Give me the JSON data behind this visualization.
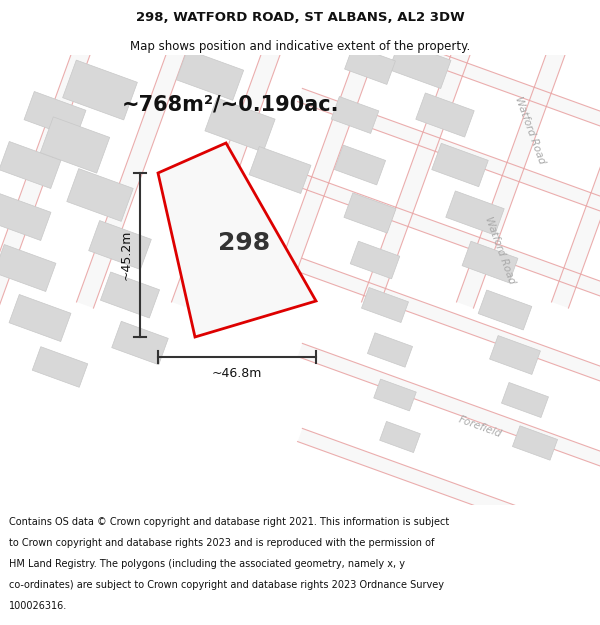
{
  "title_line1": "298, WATFORD ROAD, ST ALBANS, AL2 3DW",
  "title_line2": "Map shows position and indicative extent of the property.",
  "area_text": "~768m²/~0.190ac.",
  "label_number": "298",
  "dim_vertical": "~45.2m",
  "dim_horizontal": "~46.8m",
  "footer_lines": [
    "Contains OS data © Crown copyright and database right 2021. This information is subject",
    "to Crown copyright and database rights 2023 and is reproduced with the permission of",
    "HM Land Registry. The polygons (including the associated geometry, namely x, y",
    "co-ordinates) are subject to Crown copyright and database rights 2023 Ordnance Survey",
    "100026316."
  ],
  "bg_color": "#f0f0f0",
  "map_bg_color": "#f0f0f0",
  "road_line_color": "#e8a0a0",
  "road_fill_color": "#f8e8e8",
  "plot_outline_color": "#dd0000",
  "plot_fill_color": "#f8f8f8",
  "building_color": "#d8d8d8",
  "building_edge_color": "#c8c8c8",
  "dim_line_color": "#333333",
  "road_label_color": "#aaaaaa",
  "white": "#ffffff",
  "title_fontsize": 9.5,
  "subtitle_fontsize": 8.5,
  "area_fontsize": 15,
  "label_fontsize": 18,
  "dim_fontsize": 9,
  "footer_fontsize": 7.0,
  "road_label_fontsize": 7.5
}
